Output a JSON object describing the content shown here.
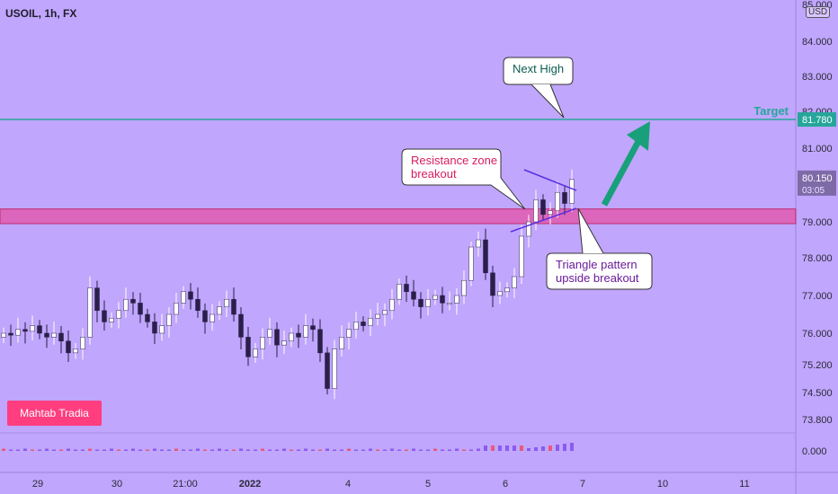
{
  "header": {
    "symbol": "USOIL, 1h, FX",
    "currency": "USD"
  },
  "watermark": "Mahtab Tradia",
  "annotations": {
    "next_high": "Next High",
    "target_label": "Target",
    "resistance": [
      "Resistance zone",
      "breakout"
    ],
    "triangle": [
      "Triangle pattern",
      "upside breakout"
    ]
  },
  "price_badges": {
    "target": "81.780",
    "last": "80.150",
    "countdown": "03:05"
  },
  "colors": {
    "background": "#c0a6fc",
    "target_line": "#26a69a",
    "zone": "#e05bb0",
    "up_candle": "#ffffff",
    "down_candle": "#2a1f4a",
    "arrow": "#18a07a",
    "callout_red": "#d81b60",
    "callout_purple": "#6a1b9a"
  },
  "chart_data": {
    "type": "candlestick",
    "title": "USOIL, 1h, FX",
    "x_ticks": [
      "29",
      "30",
      "21:00",
      "2022",
      "4",
      "5",
      "6",
      "7",
      "10",
      "11"
    ],
    "y_ticks": [
      85.0,
      84.0,
      83.0,
      82.0,
      81.0,
      79.0,
      78.0,
      77.0,
      76.0,
      75.2,
      74.5,
      73.8
    ],
    "ylim": [
      73.5,
      85.0
    ],
    "target_level": 81.78,
    "resistance_zone": [
      78.95,
      79.35
    ],
    "last_price": 80.15,
    "close_series": [
      76.0,
      75.95,
      76.1,
      76.05,
      76.2,
      76.0,
      75.9,
      76.0,
      75.8,
      75.5,
      75.6,
      75.9,
      77.2,
      76.6,
      76.3,
      76.4,
      76.6,
      76.9,
      76.8,
      76.5,
      76.3,
      76.0,
      76.2,
      76.5,
      76.8,
      77.1,
      76.9,
      76.6,
      76.3,
      76.5,
      76.7,
      76.9,
      76.5,
      75.9,
      75.4,
      75.6,
      75.9,
      76.1,
      75.7,
      75.8,
      76.0,
      75.9,
      76.2,
      76.1,
      75.5,
      74.6,
      75.6,
      75.9,
      76.1,
      76.3,
      76.2,
      76.4,
      76.5,
      76.6,
      76.9,
      77.3,
      77.1,
      76.9,
      76.7,
      76.9,
      77.0,
      76.8,
      76.8,
      77.0,
      77.4,
      78.3,
      78.5,
      77.6,
      77.0,
      77.1,
      77.2,
      77.5,
      78.6,
      79.0,
      79.6,
      79.2,
      79.3,
      79.8,
      79.5,
      80.15
    ],
    "oscillator": {
      "ylim": [
        -1,
        1
      ],
      "tick": "0.000"
    }
  }
}
